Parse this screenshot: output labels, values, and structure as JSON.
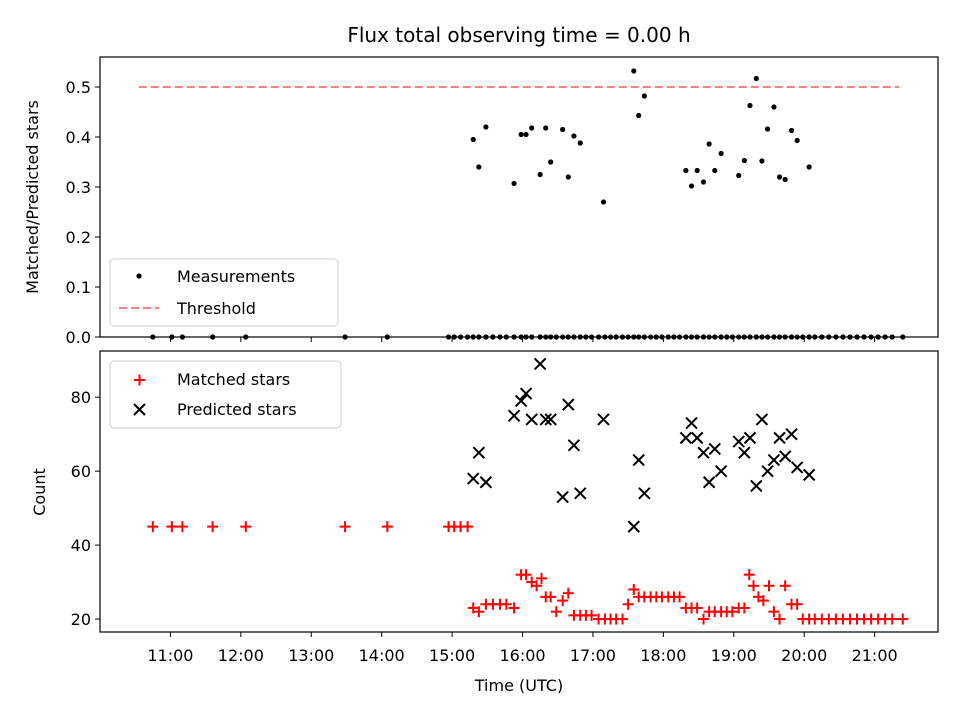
{
  "chart_data": [
    {
      "type": "scatter",
      "title": "Flux total observing time = 0.00 h",
      "xlabel": "",
      "ylabel": "Matched/Predicted stars",
      "xlim_hours": [
        10.0,
        21.9
      ],
      "ylim": [
        0,
        0.56
      ],
      "yticks": [
        0,
        0.1,
        0.2,
        0.3,
        0.4,
        0.5
      ],
      "ytick_labels": [
        "0.0",
        "0.1",
        "0.2",
        "0.3",
        "0.4",
        "0.5"
      ],
      "grid": false,
      "legend_position": "lower-left",
      "series": [
        {
          "name": "Measurements",
          "kind": "dot",
          "color": "#000000",
          "x": [
            10.75,
            11.02,
            11.17,
            11.6,
            12.07,
            13.48,
            14.08,
            14.95,
            15.03,
            15.12,
            15.22,
            15.3,
            15.38,
            15.48,
            15.58,
            15.68,
            15.77,
            15.88,
            15.98,
            16.05,
            16.13,
            16.25,
            16.33,
            16.4,
            16.48,
            16.57,
            16.65,
            16.73,
            16.82,
            16.9,
            16.98,
            17.08,
            17.17,
            17.25,
            17.33,
            17.42,
            17.5,
            17.58,
            17.65,
            17.73,
            17.82,
            17.9,
            17.98,
            18.07,
            18.15,
            18.23,
            18.32,
            18.4,
            18.48,
            18.57,
            18.65,
            18.73,
            18.82,
            18.9,
            18.98,
            19.07,
            19.15,
            19.23,
            19.32,
            19.4,
            19.48,
            19.57,
            19.65,
            19.73,
            19.82,
            19.9,
            19.98,
            20.07,
            20.15,
            20.25,
            20.35,
            20.45,
            20.55,
            20.65,
            20.75,
            20.85,
            20.95,
            21.05,
            21.15,
            21.25,
            21.4,
            15.3,
            15.38,
            15.48,
            15.88,
            15.98,
            16.05,
            16.13,
            16.25,
            16.33,
            16.4,
            16.57,
            16.65,
            16.73,
            16.82,
            17.15,
            17.58,
            17.65,
            17.73,
            18.32,
            18.4,
            18.48,
            18.57,
            18.65,
            18.73,
            18.82,
            19.07,
            19.15,
            19.23,
            19.32,
            19.4,
            19.48,
            19.57,
            19.65,
            19.73,
            19.82,
            19.9,
            20.07
          ],
          "y": [
            0,
            0,
            0,
            0,
            0,
            0,
            0,
            0,
            0,
            0,
            0,
            0,
            0,
            0,
            0,
            0,
            0,
            0,
            0,
            0,
            0,
            0,
            0,
            0,
            0,
            0,
            0,
            0,
            0,
            0,
            0,
            0,
            0,
            0,
            0,
            0,
            0,
            0,
            0,
            0,
            0,
            0,
            0,
            0,
            0,
            0,
            0,
            0,
            0,
            0,
            0,
            0,
            0,
            0,
            0,
            0,
            0,
            0,
            0,
            0,
            0,
            0,
            0,
            0,
            0,
            0,
            0,
            0,
            0,
            0,
            0,
            0,
            0,
            0,
            0,
            0,
            0,
            0,
            0,
            0,
            0,
            0.395,
            0.34,
            0.42,
            0.307,
            0.405,
            0.405,
            0.418,
            0.325,
            0.418,
            0.35,
            0.415,
            0.32,
            0.402,
            0.388,
            0.27,
            0.532,
            0.443,
            0.482,
            0.333,
            0.302,
            0.333,
            0.31,
            0.386,
            0.333,
            0.367,
            0.323,
            0.353,
            0.463,
            0.517,
            0.352,
            0.416,
            0.46,
            0.32,
            0.315,
            0.413,
            0.393,
            0.34
          ]
        },
        {
          "name": "Threshold",
          "kind": "dashed-line",
          "color": "#ff7f7f",
          "x": [
            10.55,
            21.35
          ],
          "y": [
            0.5,
            0.5
          ]
        }
      ]
    },
    {
      "type": "scatter",
      "title": "",
      "xlabel": "Time (UTC)",
      "ylabel": "Count",
      "xlim_hours": [
        10.0,
        21.9
      ],
      "ylim": [
        16.5,
        92.5
      ],
      "yticks": [
        20,
        40,
        60,
        80
      ],
      "ytick_labels": [
        "20",
        "40",
        "60",
        "80"
      ],
      "xticks": [
        11,
        12,
        13,
        14,
        15,
        16,
        17,
        18,
        19,
        20,
        21
      ],
      "xtick_labels": [
        "11:00",
        "12:00",
        "13:00",
        "14:00",
        "15:00",
        "16:00",
        "17:00",
        "18:00",
        "19:00",
        "20:00",
        "21:00"
      ],
      "grid": false,
      "legend_position": "upper-left",
      "series": [
        {
          "name": "Matched stars",
          "kind": "plus",
          "color": "#ff0000",
          "x": [
            10.75,
            11.02,
            11.17,
            11.6,
            12.07,
            13.48,
            14.08,
            14.95,
            15.03,
            15.12,
            15.22,
            15.3,
            15.38,
            15.48,
            15.58,
            15.68,
            15.77,
            15.88,
            15.98,
            16.05,
            16.13,
            16.2,
            16.27,
            16.33,
            16.4,
            16.48,
            16.57,
            16.65,
            16.73,
            16.82,
            16.9,
            16.98,
            17.08,
            17.17,
            17.25,
            17.33,
            17.42,
            17.5,
            17.58,
            17.65,
            17.73,
            17.82,
            17.9,
            17.98,
            18.07,
            18.15,
            18.23,
            18.32,
            18.4,
            18.48,
            18.57,
            18.65,
            18.73,
            18.82,
            18.9,
            18.98,
            19.07,
            19.15,
            19.22,
            19.28,
            19.35,
            19.42,
            19.5,
            19.57,
            19.65,
            19.73,
            19.82,
            19.9,
            19.98,
            20.07,
            20.15,
            20.25,
            20.35,
            20.45,
            20.55,
            20.65,
            20.75,
            20.85,
            20.95,
            21.05,
            21.15,
            21.25,
            21.4
          ],
          "y": [
            45,
            45,
            45,
            45,
            45,
            45,
            45,
            45,
            45,
            45,
            45,
            23,
            22,
            24,
            24,
            24,
            24,
            23,
            32,
            32,
            30,
            29,
            31,
            26,
            26,
            22,
            25,
            27,
            21,
            21,
            21,
            21,
            20,
            20,
            20,
            20,
            20,
            24,
            28,
            26,
            26,
            26,
            26,
            26,
            26,
            26,
            26,
            23,
            23,
            23,
            20,
            22,
            22,
            22,
            22,
            22,
            23,
            23,
            32,
            29,
            26,
            25,
            29,
            22,
            20,
            29,
            24,
            24,
            20,
            20,
            20,
            20,
            20,
            20,
            20,
            20,
            20,
            20,
            20,
            20,
            20,
            20,
            20
          ]
        },
        {
          "name": "Predicted stars",
          "kind": "cross",
          "color": "#000000",
          "x": [
            15.3,
            15.38,
            15.48,
            15.88,
            15.98,
            16.05,
            16.13,
            16.25,
            16.33,
            16.4,
            16.57,
            16.65,
            16.73,
            16.82,
            17.15,
            17.58,
            17.65,
            17.73,
            18.32,
            18.4,
            18.48,
            18.57,
            18.65,
            18.73,
            18.82,
            19.07,
            19.15,
            19.23,
            19.32,
            19.4,
            19.48,
            19.57,
            19.65,
            19.73,
            19.82,
            19.9,
            20.07
          ],
          "y": [
            58,
            65,
            57,
            75,
            79,
            81,
            74,
            89,
            74,
            74,
            53,
            78,
            67,
            54,
            74,
            45,
            63,
            54,
            69,
            73,
            69,
            65,
            57,
            66,
            60,
            68,
            65,
            69,
            56,
            74,
            60,
            63,
            69,
            64,
            70,
            61,
            59
          ]
        }
      ]
    }
  ]
}
